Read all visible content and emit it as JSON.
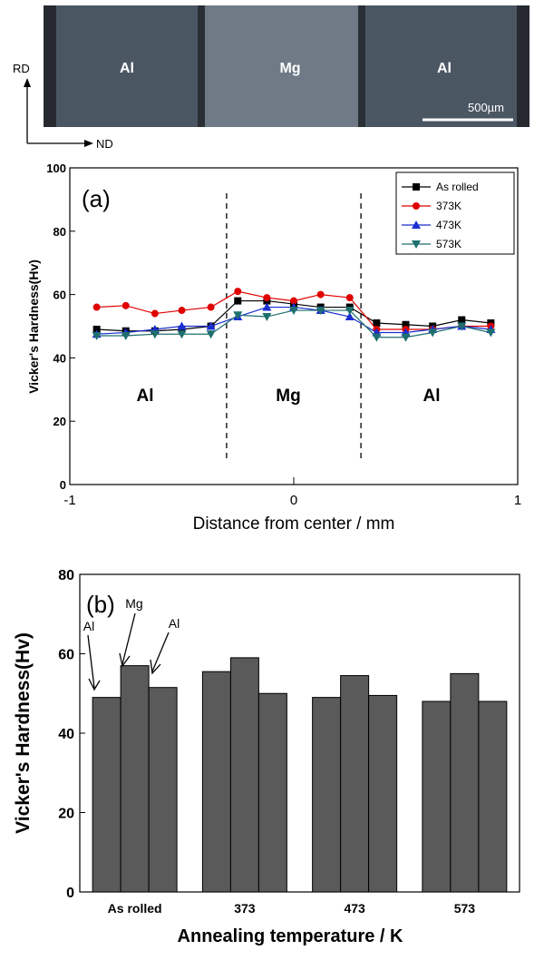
{
  "micrograph": {
    "layers": [
      "Al",
      "Mg",
      "Al"
    ],
    "scale_bar_label": "500µm",
    "axis_rd": "RD",
    "axis_nd": "ND"
  },
  "colors": {
    "as_rolled": "#000000",
    "k373": "#e00000",
    "k473": "#1a2fd0",
    "k573": "#1f6f6f",
    "bars": "#5a5a5a",
    "al_layer": "#4b5663",
    "mg_layer": "#6f7a86"
  },
  "chart_data": [
    {
      "type": "line",
      "panel_label": "(a)",
      "xlabel": "Distance from center / mm",
      "ylabel": "Vicker's Hardness(Hv)",
      "xlim": [
        -1,
        1
      ],
      "ylim": [
        0,
        100
      ],
      "x_ticks": [
        -1,
        0,
        1
      ],
      "y_ticks": [
        0,
        20,
        40,
        60,
        80,
        100
      ],
      "boundaries": [
        -0.3,
        0.3
      ],
      "region_labels": [
        "Al",
        "Mg",
        "Al"
      ],
      "legend_position": "top-right",
      "x": [
        -0.88,
        -0.75,
        -0.62,
        -0.5,
        -0.37,
        -0.25,
        -0.12,
        0.0,
        0.12,
        0.25,
        0.37,
        0.5,
        0.62,
        0.75,
        0.88
      ],
      "series": [
        {
          "name": "As rolled",
          "marker": "square",
          "values": [
            49,
            48.5,
            48.5,
            49,
            50,
            58,
            58,
            57,
            56,
            56,
            51,
            50.5,
            50,
            52,
            51
          ]
        },
        {
          "name": "373K",
          "marker": "circle",
          "values": [
            56,
            56.5,
            54,
            55,
            56,
            61,
            59,
            58,
            60,
            59,
            49,
            49,
            49,
            50,
            50
          ]
        },
        {
          "name": "473K",
          "marker": "triangle-up",
          "values": [
            47.5,
            48,
            49,
            50,
            50,
            53,
            56,
            56,
            55,
            53,
            48,
            48,
            49,
            50,
            49
          ]
        },
        {
          "name": "573K",
          "marker": "triangle-down",
          "values": [
            47,
            47,
            47.5,
            47.5,
            47.5,
            53.5,
            53,
            55,
            55,
            55,
            46.5,
            46.5,
            48,
            50,
            48
          ]
        }
      ]
    },
    {
      "type": "bar",
      "panel_label": "(b)",
      "xlabel": "Annealing temperature / K",
      "ylabel": "Vicker's Hardness(Hv)",
      "ylim": [
        0,
        80
      ],
      "y_ticks": [
        0,
        20,
        40,
        60,
        80
      ],
      "categories": [
        "As rolled",
        "373",
        "473",
        "573"
      ],
      "layer_labels": [
        "Al",
        "Mg",
        "Al"
      ],
      "series": [
        {
          "values": [
            49,
            55.5,
            49,
            48
          ]
        },
        {
          "values": [
            57,
            59,
            54.5,
            55
          ]
        },
        {
          "values": [
            51.5,
            50,
            49.5,
            48
          ]
        }
      ]
    }
  ]
}
